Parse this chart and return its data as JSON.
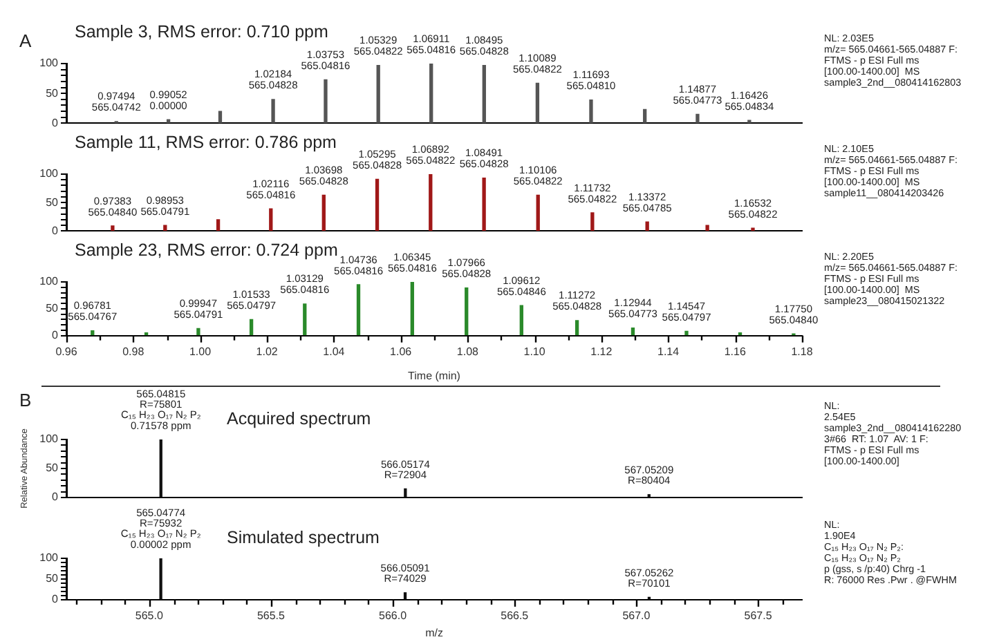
{
  "chart_data": [
    {
      "type": "bar",
      "title": "Sample 3, RMS error: 0.710 ppm",
      "color": "#555555",
      "x": [
        0.97494,
        0.99052,
        1.006,
        1.02184,
        1.03753,
        1.05329,
        1.06911,
        1.08495,
        1.10089,
        1.11693,
        1.133,
        1.14877,
        1.16426
      ],
      "values": [
        3,
        6,
        20,
        40,
        73,
        97,
        100,
        97,
        67,
        39,
        23,
        15,
        5
      ],
      "xlim": [
        0.96,
        1.18
      ],
      "ylim": [
        0,
        100
      ],
      "yticks": [
        0,
        {
          "value": 10,
          "label": null
        },
        {
          "value": 20,
          "label": null
        },
        {
          "value": 30,
          "label": null
        },
        {
          "value": 40,
          "label": null
        },
        50,
        {
          "value": 60,
          "label": null
        },
        {
          "value": 70,
          "label": null
        },
        {
          "value": 80,
          "label": null
        },
        {
          "value": 90,
          "label": null
        },
        100
      ],
      "tick_labels": "y",
      "grid": false,
      "legend": false,
      "annotations": [
        "A",
        "NL: 2.03E5\nm/z= 565.04661-565.04887 F:\nFTMS - p ESI Full ms\n[100.00-1400.00]  MS\nsample3_2nd__080414162803",
        {
          "text": "0.97494\n565.04742",
          "x": 0.97494,
          "y": 3
        },
        {
          "text": "0.99052\n0.00000",
          "x": 0.99052,
          "y": 6
        },
        {
          "text": "1.02184\n565.04828",
          "x": 1.02184,
          "y": 40
        },
        {
          "text": "1.03753\n565.04816",
          "x": 1.03753,
          "y": 73
        },
        {
          "text": "1.05329\n565.04822",
          "x": 1.05329,
          "y": 97
        },
        {
          "text": "1.06911\n565.04816",
          "x": 1.06911,
          "y": 100
        },
        {
          "text": "1.08495\n565.04828",
          "x": 1.08495,
          "y": 97
        },
        {
          "text": "1.10089\n565.04822",
          "x": 1.10089,
          "y": 67
        },
        {
          "text": "1.11693\n565.04810",
          "x": 1.11693,
          "y": 39
        },
        {
          "text": "1.14877\n565.04773",
          "x": 1.14877,
          "y": 15
        },
        {
          "text": "1.16426\n565.04834",
          "x": 1.16426,
          "y": 5
        }
      ]
    },
    {
      "type": "bar",
      "title": "Sample 11, RMS error: 0.786 ppm",
      "color": "#a01818",
      "x": [
        0.97383,
        0.98953,
        1.0054,
        1.02116,
        1.03698,
        1.05295,
        1.06892,
        1.08491,
        1.10106,
        1.11732,
        1.13372,
        1.1517,
        1.16532
      ],
      "values": [
        9,
        10,
        20,
        39,
        63,
        91,
        100,
        93,
        63,
        32,
        16,
        10,
        5
      ],
      "xlim": [
        0.96,
        1.18
      ],
      "ylim": [
        0,
        100
      ],
      "yticks": [
        0,
        {
          "value": 10,
          "label": null
        },
        {
          "value": 20,
          "label": null
        },
        {
          "value": 30,
          "label": null
        },
        {
          "value": 40,
          "label": null
        },
        50,
        {
          "value": 60,
          "label": null
        },
        {
          "value": 70,
          "label": null
        },
        {
          "value": 80,
          "label": null
        },
        {
          "value": 90,
          "label": null
        },
        100
      ],
      "tick_labels": "y",
      "grid": false,
      "legend": false,
      "annotations": [
        "NL: 2.10E5\nm/z= 565.04661-565.04887 F:\nFTMS - p ESI Full ms\n[100.00-1400.00]  MS\nsample11__080414203426",
        {
          "text": "0.97383\n565.04840",
          "x": 0.97383,
          "y": 9
        },
        {
          "text": "0.98953\n565.04791",
          "x": 0.98953,
          "y": 10
        },
        {
          "text": "1.02116\n565.04816",
          "x": 1.02116,
          "y": 39
        },
        {
          "text": "1.03698\n565.04828",
          "x": 1.03698,
          "y": 63
        },
        {
          "text": "1.05295\n565.04828",
          "x": 1.05295,
          "y": 91
        },
        {
          "text": "1.06892\n565.04822",
          "x": 1.06892,
          "y": 100
        },
        {
          "text": "1.08491\n565.04828",
          "x": 1.08491,
          "y": 93
        },
        {
          "text": "1.10106\n565.04822",
          "x": 1.10106,
          "y": 63
        },
        {
          "text": "1.11732\n565.04822",
          "x": 1.11732,
          "y": 32
        },
        {
          "text": "1.13372\n565.04785",
          "x": 1.13372,
          "y": 16
        },
        {
          "text": "1.16532\n565.04822",
          "x": 1.16532,
          "y": 5
        }
      ]
    },
    {
      "type": "bar",
      "title": "Sample 23, RMS error: 0.724 ppm",
      "xlabel": "Time (min)",
      "color": "#2a8a2a",
      "x": [
        0.96781,
        0.9839,
        0.99947,
        1.01533,
        1.03129,
        1.04736,
        1.06345,
        1.07966,
        1.09612,
        1.11272,
        1.12944,
        1.14547,
        1.1615,
        1.1775
      ],
      "values": [
        9,
        5,
        13,
        30,
        59,
        95,
        100,
        89,
        56,
        28,
        14,
        8,
        5,
        3
      ],
      "xlim": [
        0.96,
        1.18
      ],
      "ylim": [
        0,
        100
      ],
      "xticks": [
        0.96,
        {
          "value": 0.97,
          "label": null
        },
        0.98,
        {
          "value": 0.99,
          "label": null
        },
        {
          "value": 1,
          "label": "1.00"
        },
        {
          "value": 1.01,
          "label": null
        },
        1.02,
        {
          "value": 1.03,
          "label": null
        },
        1.04,
        {
          "value": 1.05,
          "label": null
        },
        1.06,
        {
          "value": 1.07,
          "label": null
        },
        1.08,
        {
          "value": 1.09,
          "label": null
        },
        {
          "value": 1.1,
          "label": "1.10"
        },
        {
          "value": 1.11,
          "label": null
        },
        1.12,
        {
          "value": 1.13,
          "label": null
        },
        1.14,
        {
          "value": 1.15,
          "label": null
        },
        1.16,
        {
          "value": 1.17,
          "label": null
        },
        1.18
      ],
      "yticks": [
        0,
        {
          "value": 10,
          "label": null
        },
        {
          "value": 20,
          "label": null
        },
        {
          "value": 30,
          "label": null
        },
        {
          "value": 40,
          "label": null
        },
        50,
        {
          "value": 60,
          "label": null
        },
        {
          "value": 70,
          "label": null
        },
        {
          "value": 80,
          "label": null
        },
        {
          "value": 90,
          "label": null
        },
        100
      ],
      "grid": false,
      "legend": false,
      "annotations": [
        "NL: 2.20E5\nm/z= 565.04661-565.04887 F:\nFTMS - p ESI Full ms\n[100.00-1400.00]  MS\nsample23__080415021322",
        {
          "text": "0.96781\n565.04767",
          "x": 0.96781,
          "y": 9
        },
        {
          "text": "0.99947\n565.04791",
          "x": 0.99947,
          "y": 13
        },
        {
          "text": "1.01533\n565.04797",
          "x": 1.01533,
          "y": 30
        },
        {
          "text": "1.03129\n565.04816",
          "x": 1.03129,
          "y": 59
        },
        {
          "text": "1.04736\n565.04816",
          "x": 1.04736,
          "y": 95
        },
        {
          "text": "1.06345\n565.04816",
          "x": 1.06345,
          "y": 100
        },
        {
          "text": "1.07966\n565.04828",
          "x": 1.07966,
          "y": 89
        },
        {
          "text": "1.09612\n565.04846",
          "x": 1.09612,
          "y": 56
        },
        {
          "text": "1.11272\n565.04828",
          "x": 1.11272,
          "y": 28
        },
        {
          "text": "1.12944\n565.04773",
          "x": 1.12944,
          "y": 14
        },
        {
          "text": "1.14547\n565.04797",
          "x": 1.14547,
          "y": 8
        },
        {
          "text": "1.17750\n565.04840",
          "x": 1.1775,
          "y": 3
        }
      ]
    },
    {
      "type": "bar",
      "title": "Acquired spectrum",
      "ylabel": "Relative Abundance",
      "color": "#111111",
      "x": [
        565.04815,
        566.05174,
        567.05209
      ],
      "values": [
        100,
        15,
        5
      ],
      "xlim": [
        564.66,
        567.68
      ],
      "ylim": [
        0,
        100
      ],
      "yticks": [
        0,
        {
          "value": 10,
          "label": null
        },
        {
          "value": 20,
          "label": null
        },
        {
          "value": 30,
          "label": null
        },
        {
          "value": 40,
          "label": null
        },
        50,
        {
          "value": 60,
          "label": null
        },
        {
          "value": 70,
          "label": null
        },
        {
          "value": 80,
          "label": null
        },
        {
          "value": 90,
          "label": null
        },
        100
      ],
      "tick_labels": "y",
      "grid": false,
      "legend": false,
      "annotations": [
        "B",
        "NL:\n2.54E5\nsample3_2nd__080414162280\n3#66  RT: 1.07  AV: 1 F:\nFTMS - p ESI Full ms\n[100.00-1400.00]",
        {
          "text": "565.04815\nR=75801\nC₁₅ H₂₃ O₁₇ N₂ P₂\n0.71578 ppm",
          "x": 565.04815,
          "y": 100
        },
        {
          "text": "566.05174\nR=72904",
          "x": 566.05174,
          "y": 15
        },
        {
          "text": "567.05209\nR=80404",
          "x": 567.05209,
          "y": 5
        }
      ]
    },
    {
      "type": "bar",
      "title": "Simulated spectrum",
      "xlabel": "m/z",
      "color": "#111111",
      "x": [
        565.04774,
        566.05091,
        567.05262
      ],
      "values": [
        100,
        17,
        6
      ],
      "xlim": [
        564.66,
        567.68
      ],
      "ylim": [
        0,
        100
      ],
      "xticks": [
        {
          "value": 564.7,
          "label": null
        },
        {
          "value": 564.8,
          "label": null
        },
        {
          "value": 564.9,
          "label": null
        },
        {
          "value": 565,
          "label": "565.0"
        },
        {
          "value": 565.1,
          "label": null
        },
        {
          "value": 565.2,
          "label": null
        },
        {
          "value": 565.3,
          "label": null
        },
        {
          "value": 565.4,
          "label": null
        },
        565.5,
        {
          "value": 565.6,
          "label": null
        },
        {
          "value": 565.7,
          "label": null
        },
        {
          "value": 565.8,
          "label": null
        },
        {
          "value": 565.9,
          "label": null
        },
        {
          "value": 566,
          "label": "566.0"
        },
        {
          "value": 566.1,
          "label": null
        },
        {
          "value": 566.2,
          "label": null
        },
        {
          "value": 566.3,
          "label": null
        },
        {
          "value": 566.4,
          "label": null
        },
        566.5,
        {
          "value": 566.6,
          "label": null
        },
        {
          "value": 566.7,
          "label": null
        },
        {
          "value": 566.8,
          "label": null
        },
        {
          "value": 566.9,
          "label": null
        },
        {
          "value": 567,
          "label": "567.0"
        },
        {
          "value": 567.1,
          "label": null
        },
        {
          "value": 567.2,
          "label": null
        },
        {
          "value": 567.3,
          "label": null
        },
        {
          "value": 567.4,
          "label": null
        },
        567.5,
        {
          "value": 567.6,
          "label": null
        }
      ],
      "yticks": [
        0,
        {
          "value": 10,
          "label": null
        },
        {
          "value": 20,
          "label": null
        },
        {
          "value": 30,
          "label": null
        },
        {
          "value": 40,
          "label": null
        },
        50,
        {
          "value": 60,
          "label": null
        },
        {
          "value": 70,
          "label": null
        },
        {
          "value": 80,
          "label": null
        },
        {
          "value": 90,
          "label": null
        },
        100
      ],
      "grid": false,
      "legend": false,
      "annotations": [
        "NL:\n1.90E4\nC₁₅ H₂₃ O₁₇ N₂ P₂:\nC₁₅ H₂₃ O₁₇ N₂ P₂\np (gss, s /p:40) Chrg -1\nR: 76000 Res .Pwr . @FWHM",
        {
          "text": "565.04774\nR=75932\nC₁₅ H₂₃ O₁₇ N₂ P₂\n0.00002 ppm",
          "x": 565.04774,
          "y": 100
        },
        {
          "text": "566.05091\nR=74029",
          "x": 566.05091,
          "y": 17
        },
        {
          "text": "567.05262\nR=70101",
          "x": 567.05262,
          "y": 6
        }
      ]
    }
  ]
}
